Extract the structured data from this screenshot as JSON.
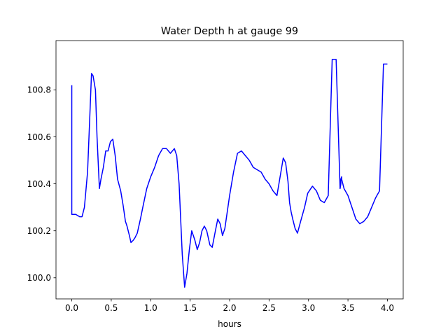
{
  "chart_data": {
    "type": "line",
    "title": "Water Depth h at gauge 99",
    "xlabel": "hours",
    "ylabel": "",
    "xlim": [
      -0.2,
      4.2
    ],
    "ylim": [
      99.91,
      101.01
    ],
    "xticks": [
      0.0,
      0.5,
      1.0,
      1.5,
      2.0,
      2.5,
      3.0,
      3.5,
      4.0
    ],
    "xtick_labels": [
      "0.0",
      "0.5",
      "1.0",
      "1.5",
      "2.0",
      "2.5",
      "3.0",
      "3.5",
      "4.0"
    ],
    "yticks": [
      100.0,
      100.2,
      100.4,
      100.6,
      100.8
    ],
    "ytick_labels": [
      "100.0",
      "100.2",
      "100.4",
      "100.6",
      "100.8"
    ],
    "grid": false,
    "color": "#0000ff",
    "series": [
      {
        "x": [
          0.0,
          0.0,
          0.0,
          0.05,
          0.1,
          0.13,
          0.16,
          0.2,
          0.23,
          0.25,
          0.27,
          0.3,
          0.32,
          0.35,
          0.37,
          0.4,
          0.43,
          0.46,
          0.49,
          0.52,
          0.55,
          0.58,
          0.62,
          0.65,
          0.68,
          0.7,
          0.73,
          0.75,
          0.78,
          0.8,
          0.83,
          0.87,
          0.9,
          0.95,
          1.0,
          1.05,
          1.1,
          1.15,
          1.2,
          1.25,
          1.3,
          1.33,
          1.36,
          1.4,
          1.43,
          1.46,
          1.49,
          1.52,
          1.56,
          1.59,
          1.62,
          1.65,
          1.68,
          1.71,
          1.75,
          1.78,
          1.82,
          1.85,
          1.88,
          1.91,
          1.94,
          1.97,
          2.0,
          2.05,
          2.1,
          2.15,
          2.2,
          2.25,
          2.3,
          2.35,
          2.4,
          2.45,
          2.5,
          2.55,
          2.6,
          2.65,
          2.68,
          2.71,
          2.74,
          2.76,
          2.78,
          2.8,
          2.83,
          2.86,
          2.9,
          2.95,
          2.99,
          3.05,
          3.1,
          3.15,
          3.2,
          3.25,
          3.3,
          3.35,
          3.4,
          3.41,
          3.41,
          3.42,
          3.42,
          3.45,
          3.5,
          3.55,
          3.6,
          3.65,
          3.7,
          3.75,
          3.8,
          3.85,
          3.9,
          3.95,
          3.98,
          3.98,
          4.0
        ],
        "y": [
          100.82,
          100.52,
          100.27,
          100.27,
          100.26,
          100.26,
          100.3,
          100.45,
          100.7,
          100.87,
          100.86,
          100.8,
          100.6,
          100.38,
          100.42,
          100.47,
          100.54,
          100.54,
          100.58,
          100.59,
          100.52,
          100.42,
          100.37,
          100.31,
          100.24,
          100.22,
          100.18,
          100.15,
          100.16,
          100.17,
          100.19,
          100.25,
          100.3,
          100.38,
          100.43,
          100.47,
          100.52,
          100.55,
          100.55,
          100.53,
          100.55,
          100.52,
          100.4,
          100.1,
          99.96,
          100.02,
          100.12,
          100.2,
          100.16,
          100.12,
          100.15,
          100.2,
          100.22,
          100.2,
          100.14,
          100.13,
          100.2,
          100.25,
          100.23,
          100.18,
          100.21,
          100.28,
          100.35,
          100.45,
          100.53,
          100.54,
          100.52,
          100.5,
          100.47,
          100.46,
          100.45,
          100.42,
          100.4,
          100.37,
          100.35,
          100.45,
          100.51,
          100.49,
          100.41,
          100.32,
          100.28,
          100.25,
          100.21,
          100.19,
          100.24,
          100.3,
          100.36,
          100.39,
          100.37,
          100.33,
          100.32,
          100.35,
          100.93,
          100.93,
          100.38,
          100.4,
          100.42,
          100.43,
          100.42,
          100.38,
          100.35,
          100.3,
          100.25,
          100.23,
          100.24,
          100.26,
          100.3,
          100.34,
          100.37,
          100.91,
          100.91,
          100.91,
          100.91
        ]
      }
    ]
  }
}
